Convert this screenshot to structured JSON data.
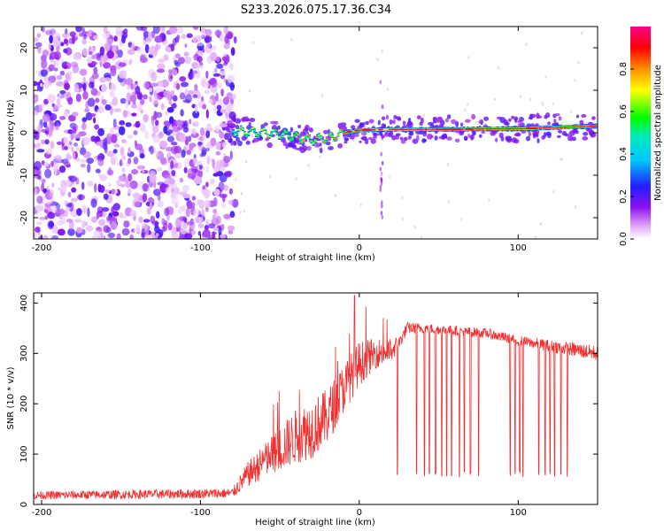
{
  "figure_title": "S233.2026.075.17.36.C34",
  "colors": {
    "snr_line": "#f03030",
    "axis": "#000000",
    "purple": "#7a10f0"
  },
  "chart_data": [
    {
      "type": "heatmap",
      "title": "",
      "xlabel": "Height of straight line (km)",
      "ylabel": "Frequency (Hz)",
      "xlim": [
        -205,
        150
      ],
      "ylim": [
        -25,
        25
      ],
      "x_ticks": [
        -200,
        -100,
        0,
        100
      ],
      "y_ticks": [
        20,
        10,
        0,
        -10,
        -20
      ],
      "x_tick_labels": [
        "-200",
        "-100",
        "0",
        "100"
      ],
      "y_tick_labels": [
        "20",
        "10",
        "0",
        "-10",
        "-20"
      ],
      "colorbar": {
        "label": "Normalized spectral amplitude",
        "range": [
          0,
          1
        ],
        "ticks": [
          0.0,
          0.2,
          0.4,
          0.6,
          0.8
        ],
        "tick_labels": [
          "0.0",
          "0.2",
          "0.4",
          "0.6",
          "0.8"
        ],
        "colormap": "rainbow (white → magenta → blue → cyan → green → yellow → red → magenta)"
      },
      "noise_region_x": [
        -205,
        -80
      ],
      "signal_track": [
        {
          "x": -80,
          "freq": 0.5,
          "amp": 0.35
        },
        {
          "x": -70,
          "freq": 0.2,
          "amp": 0.5
        },
        {
          "x": -60,
          "freq": 0.0,
          "amp": 0.5
        },
        {
          "x": -50,
          "freq": -0.3,
          "amp": 0.5
        },
        {
          "x": -40,
          "freq": -1.0,
          "amp": 0.6
        },
        {
          "x": -30,
          "freq": -1.6,
          "amp": 0.7
        },
        {
          "x": -20,
          "freq": -1.2,
          "amp": 0.7
        },
        {
          "x": -10,
          "freq": 0.0,
          "amp": 0.8
        },
        {
          "x": 0,
          "freq": 0.6,
          "amp": 0.8
        },
        {
          "x": 20,
          "freq": 0.8,
          "amp": 0.9
        },
        {
          "x": 40,
          "freq": 0.8,
          "amp": 0.95
        },
        {
          "x": 60,
          "freq": 0.8,
          "amp": 1.0
        },
        {
          "x": 80,
          "freq": 0.9,
          "amp": 0.95
        },
        {
          "x": 100,
          "freq": 0.9,
          "amp": 0.9
        },
        {
          "x": 120,
          "freq": 1.2,
          "amp": 0.85
        },
        {
          "x": 150,
          "freq": 1.6,
          "amp": 0.8
        }
      ]
    },
    {
      "type": "line",
      "title": "",
      "xlabel": "Height of straight line (km)",
      "ylabel": "SNR (10 * v/v)",
      "xlim": [
        -205,
        150
      ],
      "ylim": [
        0,
        420
      ],
      "x_ticks": [
        -200,
        -100,
        0,
        100
      ],
      "y_ticks": [
        0,
        100,
        200,
        300,
        400
      ],
      "x_tick_labels": [
        "-200",
        "-100",
        "0",
        "100"
      ],
      "y_tick_labels": [
        "0",
        "100",
        "200",
        "300",
        "400"
      ],
      "series": [
        {
          "name": "SNR",
          "envelope_x": [
            -205,
            -80,
            -70,
            -60,
            -50,
            -40,
            -30,
            -20,
            -10,
            0,
            10,
            20,
            25,
            30,
            40,
            60,
            80,
            100,
            120,
            140,
            150
          ],
          "envelope_mean": [
            18,
            22,
            60,
            85,
            110,
            135,
            150,
            175,
            230,
            280,
            300,
            305,
            320,
            350,
            350,
            345,
            340,
            325,
            315,
            305,
            300
          ],
          "envelope_spread": [
            8,
            10,
            25,
            35,
            45,
            55,
            60,
            55,
            50,
            45,
            30,
            25,
            15,
            12,
            10,
            10,
            10,
            10,
            12,
            15,
            15
          ],
          "dropout_x": [
            24,
            36,
            41,
            44,
            48,
            52,
            55,
            58,
            63,
            66,
            70,
            75,
            95,
            98,
            101,
            103,
            113,
            117,
            120,
            123,
            127,
            131
          ],
          "dropout_value": 55,
          "peak": {
            "x": -3,
            "y": 415
          }
        }
      ]
    }
  ]
}
